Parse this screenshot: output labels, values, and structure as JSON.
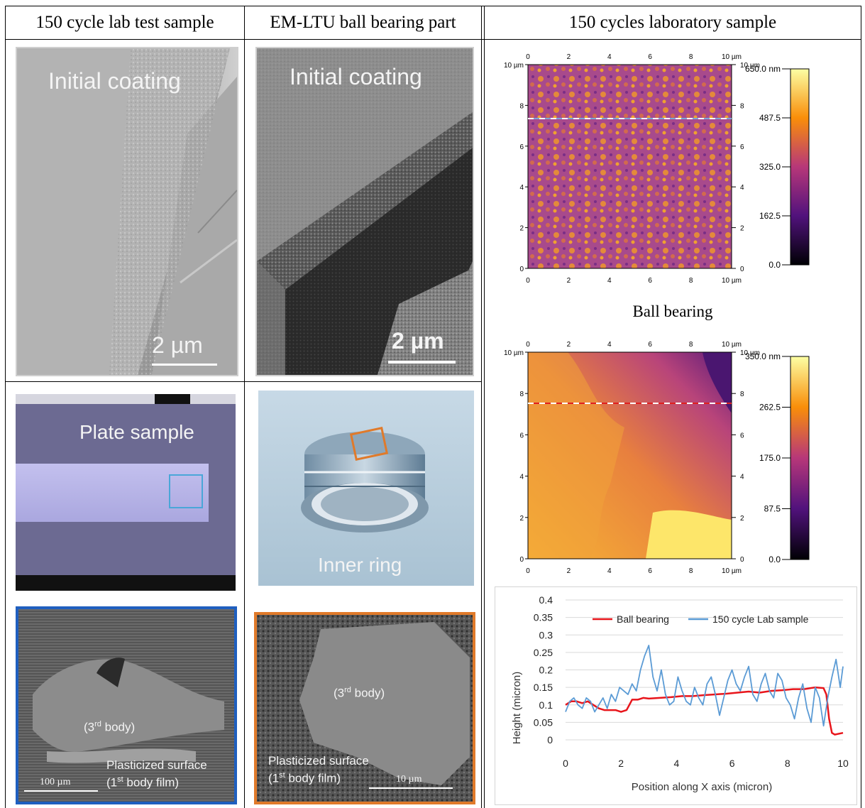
{
  "headers": {
    "col1": "150 cycle lab test sample",
    "col2": "EM-LTU ball bearing part",
    "col3": "150 cycles laboratory sample"
  },
  "sem_lab": {
    "label": "Initial coating",
    "scale": "2 µm"
  },
  "sem_ball": {
    "label": "Initial coating",
    "scale": "2 µm"
  },
  "plate": {
    "label": "Plate sample",
    "box_color": "#4aa6d8"
  },
  "ring": {
    "label": "Inner ring",
    "box_color": "#e07a2a"
  },
  "sem_lab_wear": {
    "frame_color": "#1f5fbf",
    "third_body": [
      "(3",
      "rd",
      " body)"
    ],
    "surface_line1": "Plasticized surface",
    "surface_line2": [
      "(1",
      "st",
      " body film)"
    ],
    "scale": "100 µm"
  },
  "sem_ball_wear": {
    "frame_color": "#e07a2a",
    "third_body": [
      "(3",
      "rd",
      " body)"
    ],
    "surface_line1": "Plasticized surface",
    "surface_line2": [
      "(1",
      "st",
      " body film)"
    ],
    "scale": "10 µm"
  },
  "afm_lab": {
    "ticks": [
      "0",
      "2",
      "4",
      "6",
      "8",
      "10 µm"
    ],
    "ticks_left": [
      "0",
      "2",
      "4",
      "6",
      "8",
      "10 µm"
    ],
    "ticks_right": [
      "0",
      "2",
      "4",
      "6",
      "8",
      "10 µm"
    ],
    "colorbar": [
      "650.0 nm",
      "487.5",
      "325.0",
      "162.5",
      "0.0"
    ],
    "line_color": "#7aa7d6"
  },
  "afm_ball_title": "Ball bearing",
  "afm_ball": {
    "ticks": [
      "0",
      "2",
      "4",
      "6",
      "8",
      "10 µm"
    ],
    "ticks_left": [
      "0",
      "2",
      "4",
      "6",
      "8",
      "10 µm"
    ],
    "ticks_right": [
      "0",
      "2",
      "4",
      "6",
      "8",
      "10 µm"
    ],
    "colorbar": [
      "350.0 nm",
      "262.5",
      "175.0",
      "87.5",
      "0.0"
    ],
    "line_color": "#e02020"
  },
  "chart_data": {
    "type": "line",
    "title": "",
    "xlabel": "Position along X axis (micron)",
    "ylabel": "Height (micron)",
    "xlim": [
      0,
      10
    ],
    "ylim": [
      0,
      0.4
    ],
    "x_ticks": [
      "0",
      "2",
      "4",
      "6",
      "8",
      "10"
    ],
    "y_ticks": [
      "0",
      "0.05",
      "0.1",
      "0.15",
      "0.2",
      "0.25",
      "0.3",
      "0.35",
      "0.4"
    ],
    "legend_position": "top",
    "series": [
      {
        "name": "Ball bearing",
        "color": "#e8151b",
        "x": [
          0,
          0.2,
          0.4,
          0.6,
          0.8,
          1.0,
          1.2,
          1.4,
          1.6,
          1.8,
          2.0,
          2.2,
          2.4,
          2.6,
          2.8,
          3.0,
          3.4,
          3.8,
          4.2,
          4.6,
          5.0,
          5.4,
          5.8,
          6.2,
          6.6,
          7.0,
          7.4,
          7.8,
          8.2,
          8.6,
          9.0,
          9.3,
          9.4,
          9.5,
          9.6,
          9.7,
          10.0
        ],
        "values": [
          0.1,
          0.11,
          0.11,
          0.105,
          0.11,
          0.1,
          0.09,
          0.085,
          0.085,
          0.085,
          0.08,
          0.085,
          0.115,
          0.115,
          0.12,
          0.118,
          0.12,
          0.122,
          0.125,
          0.125,
          0.128,
          0.13,
          0.132,
          0.135,
          0.138,
          0.135,
          0.14,
          0.142,
          0.145,
          0.145,
          0.15,
          0.148,
          0.13,
          0.06,
          0.02,
          0.015,
          0.02
        ]
      },
      {
        "name": "150 cycle Lab sample",
        "color": "#5b9bd5",
        "x": [
          0,
          0.15,
          0.3,
          0.45,
          0.6,
          0.75,
          0.9,
          1.05,
          1.2,
          1.35,
          1.5,
          1.65,
          1.8,
          1.95,
          2.1,
          2.25,
          2.4,
          2.55,
          2.7,
          2.85,
          3.0,
          3.15,
          3.3,
          3.45,
          3.6,
          3.75,
          3.9,
          4.05,
          4.2,
          4.35,
          4.5,
          4.65,
          4.8,
          4.95,
          5.1,
          5.25,
          5.4,
          5.55,
          5.7,
          5.85,
          6.0,
          6.15,
          6.3,
          6.45,
          6.6,
          6.75,
          6.9,
          7.05,
          7.2,
          7.35,
          7.5,
          7.65,
          7.8,
          7.95,
          8.1,
          8.25,
          8.4,
          8.55,
          8.7,
          8.85,
          9.0,
          9.15,
          9.3,
          9.45,
          9.6,
          9.75,
          9.9,
          10.0
        ],
        "values": [
          0.08,
          0.11,
          0.12,
          0.1,
          0.09,
          0.12,
          0.11,
          0.08,
          0.1,
          0.12,
          0.09,
          0.13,
          0.11,
          0.15,
          0.14,
          0.13,
          0.16,
          0.14,
          0.2,
          0.24,
          0.27,
          0.18,
          0.14,
          0.2,
          0.13,
          0.1,
          0.11,
          0.18,
          0.14,
          0.11,
          0.1,
          0.15,
          0.12,
          0.1,
          0.16,
          0.18,
          0.13,
          0.07,
          0.12,
          0.17,
          0.2,
          0.16,
          0.14,
          0.18,
          0.21,
          0.13,
          0.11,
          0.16,
          0.19,
          0.14,
          0.12,
          0.19,
          0.17,
          0.12,
          0.1,
          0.06,
          0.12,
          0.16,
          0.09,
          0.05,
          0.15,
          0.12,
          0.04,
          0.12,
          0.18,
          0.23,
          0.15,
          0.21
        ]
      }
    ]
  }
}
